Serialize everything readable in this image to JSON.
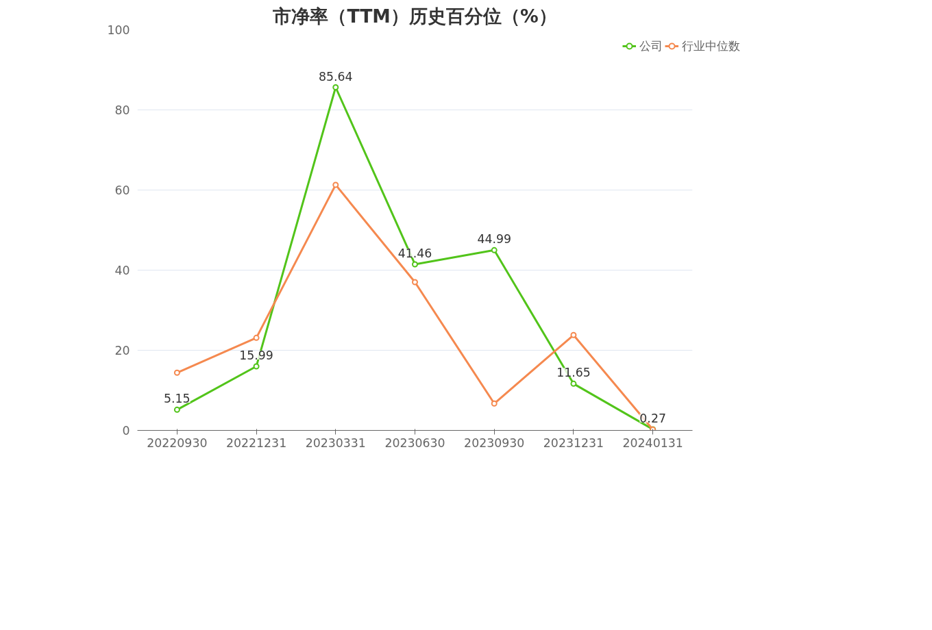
{
  "chart_data": {
    "type": "line",
    "title": "市净率（TTM）历史百分位（%）",
    "categories": [
      "20220930",
      "20221231",
      "20230331",
      "20230630",
      "20230930",
      "20231231",
      "20240131"
    ],
    "series": [
      {
        "name": "公司",
        "color": "#52c41a",
        "values": [
          5.15,
          15.99,
          85.64,
          41.46,
          44.99,
          11.65,
          0.27
        ],
        "value_labels": [
          "5.15",
          "15.99",
          "85.64",
          "41.46",
          "44.99",
          "11.65",
          "0.27"
        ]
      },
      {
        "name": "行业中位数",
        "color": "#f5894f",
        "values": [
          14.4,
          23.1,
          61.3,
          37.0,
          6.7,
          23.8,
          0.2
        ]
      }
    ],
    "ylim": [
      0,
      100
    ],
    "yticks": [
      0,
      20,
      40,
      60,
      80,
      100
    ],
    "grid": "y",
    "legend": "top right",
    "marker": "circle",
    "line_style": "solid"
  }
}
